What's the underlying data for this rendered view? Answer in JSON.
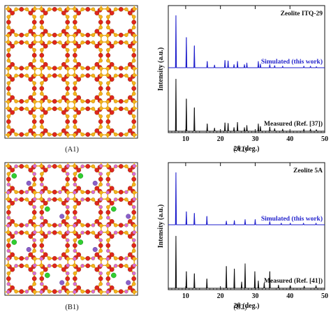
{
  "panels": [
    {
      "id": "A",
      "structure_caption": "(A1)",
      "chart_caption": "(A2)",
      "structure": {
        "grid": 4,
        "atom_colors": {
          "oxygen": "#e0261c",
          "silicon": "#f5b21a"
        },
        "has_cations": false
      }
    },
    {
      "id": "B",
      "structure_caption": "(B1)",
      "chart_caption": "(B2)",
      "structure": {
        "grid": 4,
        "atom_colors": {
          "oxygen": "#e0261c",
          "silicon": "#f5b21a",
          "aluminum": "#d96bd1",
          "calcium": "#2fce2f",
          "sodium": "#8a5fc8"
        },
        "has_cations": true
      }
    }
  ],
  "chart_data": [
    {
      "type": "line",
      "title": "Zeolite ITQ-29",
      "xlabel": "2θ (deg.)",
      "ylabel": "Intensity (a.u.)",
      "xlim": [
        5,
        50
      ],
      "xticks": [
        10,
        20,
        30,
        40,
        50
      ],
      "series": [
        {
          "name": "Simulated (this work)",
          "color": "#1f1fcc",
          "peaks": [
            [
              7.2,
              1.0
            ],
            [
              10.2,
              0.58
            ],
            [
              12.5,
              0.42
            ],
            [
              16.2,
              0.12
            ],
            [
              18.3,
              0.05
            ],
            [
              21.3,
              0.14
            ],
            [
              22.2,
              0.13
            ],
            [
              23.9,
              0.06
            ],
            [
              24.9,
              0.12
            ],
            [
              26.9,
              0.06
            ],
            [
              27.6,
              0.09
            ],
            [
              30.9,
              0.12
            ],
            [
              31.5,
              0.07
            ],
            [
              34.2,
              0.06
            ],
            [
              35.6,
              0.04
            ],
            [
              37.9,
              0.03
            ],
            [
              44.0,
              0.03
            ],
            [
              45.9,
              0.03
            ],
            [
              47.6,
              0.02
            ]
          ]
        },
        {
          "name": "Measured (Ref. [37])",
          "color": "#111111",
          "peaks": [
            [
              7.2,
              1.0
            ],
            [
              10.2,
              0.62
            ],
            [
              12.5,
              0.45
            ],
            [
              16.2,
              0.14
            ],
            [
              18.3,
              0.06
            ],
            [
              21.3,
              0.16
            ],
            [
              22.2,
              0.15
            ],
            [
              23.9,
              0.07
            ],
            [
              24.9,
              0.17
            ],
            [
              26.9,
              0.07
            ],
            [
              27.6,
              0.11
            ],
            [
              30.9,
              0.14
            ],
            [
              31.5,
              0.09
            ],
            [
              34.2,
              0.08
            ],
            [
              35.6,
              0.05
            ],
            [
              37.9,
              0.04
            ],
            [
              44.0,
              0.04
            ],
            [
              45.9,
              0.04
            ],
            [
              47.6,
              0.03
            ]
          ]
        }
      ]
    },
    {
      "type": "line",
      "title": "Zeolite 5A",
      "xlabel": "2θ (deg.)",
      "ylabel": "Intensity (a.u.)",
      "xlim": [
        5,
        50
      ],
      "xticks": [
        10,
        20,
        30,
        40,
        50
      ],
      "series": [
        {
          "name": "Simulated (this work)",
          "color": "#1f1fcc",
          "peaks": [
            [
              7.2,
              1.0
            ],
            [
              10.2,
              0.25
            ],
            [
              12.5,
              0.22
            ],
            [
              16.1,
              0.16
            ],
            [
              21.7,
              0.07
            ],
            [
              24.0,
              0.08
            ],
            [
              27.1,
              0.1
            ],
            [
              30.0,
              0.1
            ],
            [
              34.2,
              0.06
            ],
            [
              37.5,
              0.03
            ],
            [
              40.1,
              0.03
            ],
            [
              43.9,
              0.03
            ],
            [
              47.5,
              0.03
            ]
          ]
        },
        {
          "name": "Measured (Ref. [41])",
          "color": "#111111",
          "peaks": [
            [
              7.2,
              1.0
            ],
            [
              10.2,
              0.32
            ],
            [
              12.5,
              0.28
            ],
            [
              16.1,
              0.18
            ],
            [
              21.7,
              0.42
            ],
            [
              24.0,
              0.37
            ],
            [
              26.1,
              0.12
            ],
            [
              27.1,
              0.47
            ],
            [
              29.9,
              0.32
            ],
            [
              30.9,
              0.14
            ],
            [
              32.6,
              0.1
            ],
            [
              34.2,
              0.32
            ],
            [
              36.7,
              0.06
            ],
            [
              40.1,
              0.05
            ],
            [
              44.1,
              0.04
            ],
            [
              47.5,
              0.05
            ]
          ]
        }
      ]
    }
  ]
}
